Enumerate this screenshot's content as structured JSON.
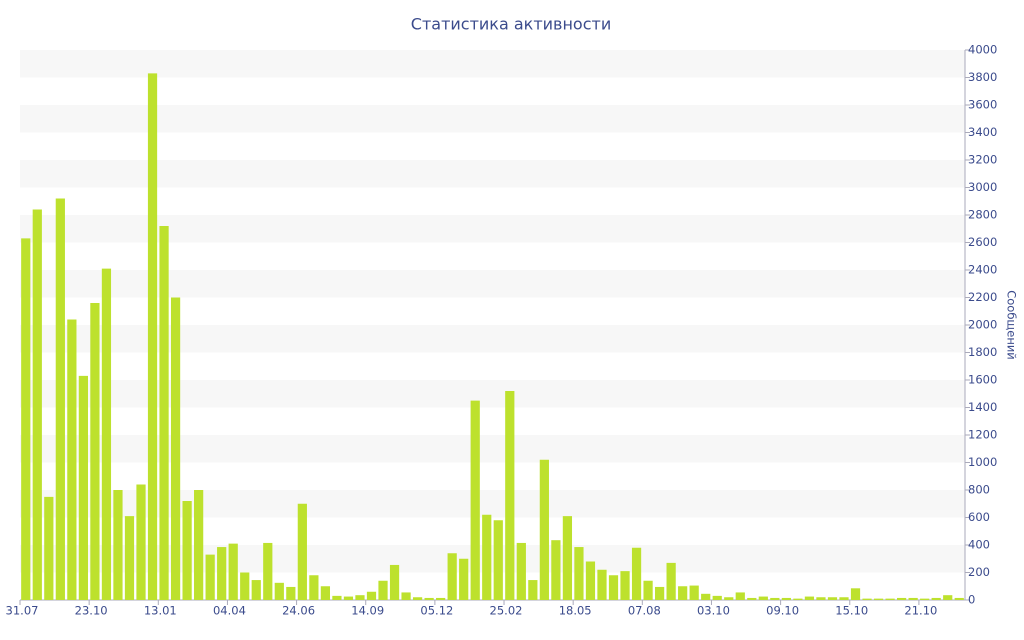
{
  "chart_data": {
    "type": "bar",
    "title": "Статистика активности",
    "y_label": "Сообщений",
    "categories": [
      "31.07",
      null,
      null,
      null,
      null,
      null,
      "23.10",
      null,
      null,
      null,
      null,
      null,
      "13.01",
      null,
      null,
      null,
      null,
      null,
      "04.04",
      null,
      null,
      null,
      null,
      null,
      "24.06",
      null,
      null,
      null,
      null,
      null,
      "14.09",
      null,
      null,
      null,
      null,
      null,
      "05.12",
      null,
      null,
      null,
      null,
      null,
      "25.02",
      null,
      null,
      null,
      null,
      null,
      "18.05",
      null,
      null,
      null,
      null,
      null,
      "07.08",
      null,
      null,
      null,
      null,
      null,
      "03.10",
      null,
      null,
      null,
      null,
      null,
      "09.10",
      null,
      null,
      null,
      null,
      null,
      "15.10",
      null,
      null,
      null,
      null,
      null,
      "21.10",
      null,
      null,
      null
    ],
    "values": [
      2630,
      2840,
      750,
      2920,
      2040,
      1630,
      2160,
      2410,
      800,
      610,
      840,
      3830,
      2720,
      2200,
      720,
      800,
      330,
      385,
      410,
      200,
      145,
      415,
      125,
      95,
      700,
      180,
      100,
      30,
      25,
      35,
      60,
      140,
      255,
      55,
      20,
      15,
      15,
      340,
      300,
      1450,
      620,
      580,
      1520,
      415,
      145,
      1020,
      435,
      610,
      385,
      280,
      220,
      180,
      210,
      380,
      140,
      95,
      270,
      100,
      105,
      45,
      30,
      20,
      55,
      15,
      25,
      15,
      15,
      10,
      25,
      20,
      20,
      20,
      85,
      10,
      10,
      10,
      15,
      15,
      10,
      15,
      35,
      15
    ],
    "color": "#bde12d",
    "ylim": [
      0,
      4000
    ],
    "yticks": [
      0,
      200,
      400,
      600,
      800,
      1000,
      1200,
      1400,
      1600,
      1800,
      2000,
      2200,
      2400,
      2600,
      2800,
      3000,
      3200,
      3400,
      3600,
      3800,
      4000
    ],
    "grid": true,
    "y_axis_side": "right"
  }
}
